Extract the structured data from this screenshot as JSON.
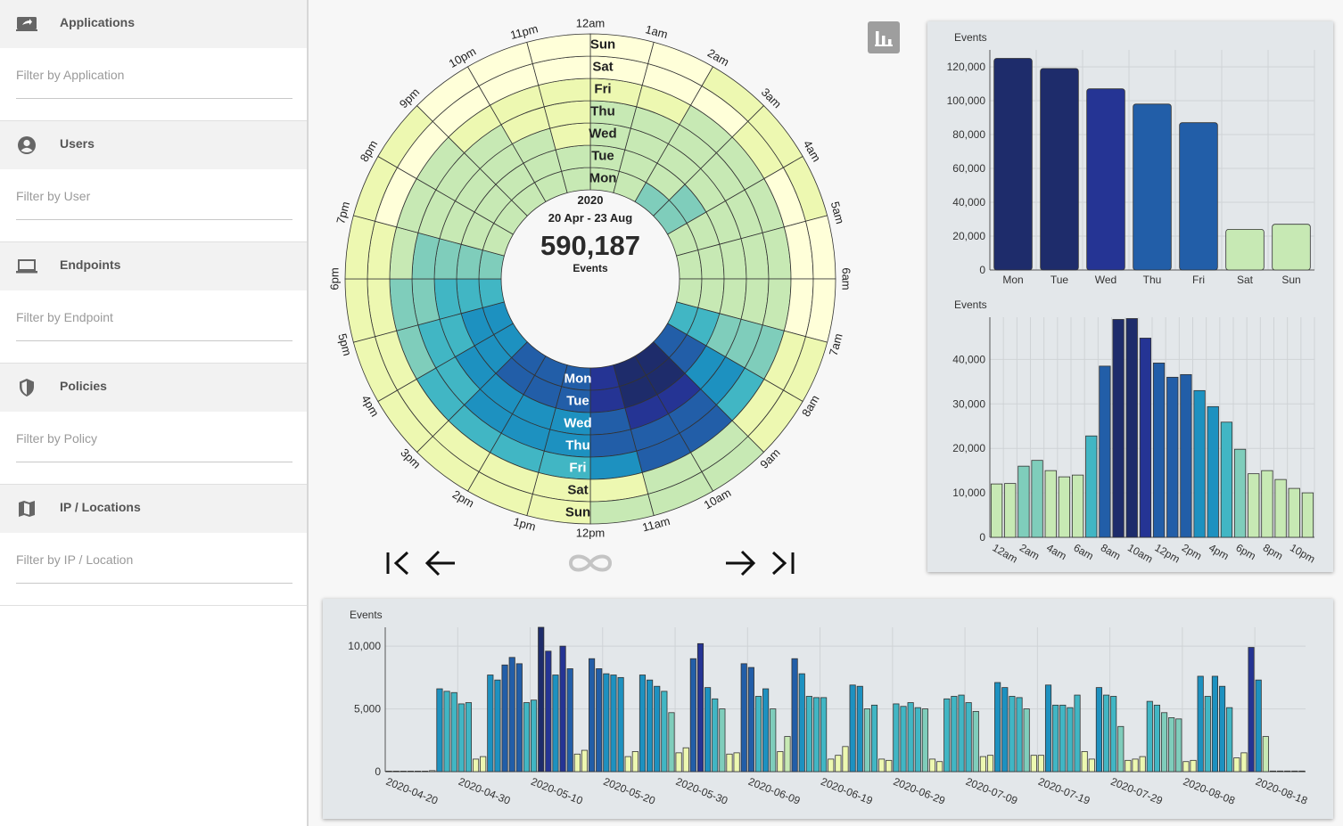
{
  "sidebar": {
    "sections": [
      {
        "title": "Applications",
        "icon": "application-icon",
        "placeholder": "Filter by Application"
      },
      {
        "title": "Users",
        "icon": "user-icon",
        "placeholder": "Filter by User"
      },
      {
        "title": "Endpoints",
        "icon": "laptop-icon",
        "placeholder": "Filter by Endpoint"
      },
      {
        "title": "Policies",
        "icon": "shield-icon",
        "placeholder": "Filter by Policy"
      },
      {
        "title": "IP / Locations",
        "icon": "map-icon",
        "placeholder": "Filter by IP / Location"
      }
    ]
  },
  "radial": {
    "year": "2020",
    "range": "20 Apr - 23 Aug",
    "total": "590,187",
    "total_label": "Events",
    "hour_labels": [
      "12am",
      "1am",
      "2am",
      "3am",
      "4am",
      "5am",
      "6am",
      "7am",
      "8am",
      "9am",
      "10am",
      "11am",
      "12pm",
      "1pm",
      "2pm",
      "3pm",
      "4pm",
      "5pm",
      "6pm",
      "7pm",
      "8pm",
      "9pm",
      "10pm",
      "11pm"
    ],
    "day_labels": [
      "Mon",
      "Tue",
      "Wed",
      "Thu",
      "Fri",
      "Sat",
      "Sun"
    ]
  },
  "colors": {
    "scale": [
      "#ffffd9",
      "#edf8b1",
      "#c7e9b4",
      "#7fcdbb",
      "#41b6c4",
      "#1d91c0",
      "#225ea8",
      "#253494",
      "#1e2c6b"
    ]
  },
  "controls": {
    "first": "skip-first-icon",
    "prev": "arrow-left-icon",
    "loop": "infinity-icon",
    "next": "arrow-right-icon",
    "last": "skip-last-icon",
    "chart_toggle": "bar-chart-icon"
  },
  "chart_data": [
    {
      "type": "bar",
      "ylabel": "Events",
      "categories": [
        "Mon",
        "Tue",
        "Wed",
        "Thu",
        "Fri",
        "Sat",
        "Sun"
      ],
      "values": [
        125000,
        119000,
        107000,
        98000,
        87000,
        24000,
        27000
      ],
      "ylim": [
        0,
        130000
      ],
      "yticks": [
        "0",
        "20,000",
        "40,000",
        "60,000",
        "80,000",
        "100,000",
        "120,000"
      ],
      "ytick_values": [
        0,
        20000,
        40000,
        60000,
        80000,
        100000,
        120000
      ],
      "grid": true
    },
    {
      "type": "bar",
      "ylabel": "Events",
      "categories": [
        "12am",
        "1am",
        "2am",
        "3am",
        "4am",
        "5am",
        "6am",
        "7am",
        "8am",
        "9am",
        "10am",
        "11am",
        "12pm",
        "1pm",
        "2pm",
        "3pm",
        "4pm",
        "5pm",
        "6pm",
        "7pm",
        "8pm",
        "9pm",
        "10pm",
        "11pm"
      ],
      "tick_labels": [
        "12am",
        "2am",
        "4am",
        "6am",
        "8am",
        "10am",
        "12pm",
        "2pm",
        "4pm",
        "6pm",
        "8pm",
        "10pm"
      ],
      "values": [
        12000,
        12100,
        16000,
        17300,
        15000,
        13600,
        14000,
        22800,
        38500,
        49000,
        49200,
        44800,
        39200,
        36000,
        36600,
        33000,
        29400,
        25900,
        19800,
        14300,
        15000,
        13000,
        11000,
        10000
      ],
      "ylim": [
        0,
        49500
      ],
      "yticks": [
        "0",
        "10,000",
        "20,000",
        "30,000",
        "40,000"
      ],
      "ytick_values": [
        0,
        10000,
        20000,
        30000,
        40000
      ],
      "grid": true
    },
    {
      "type": "bar",
      "ylabel": "Events",
      "x_start": "2020-04-20",
      "tick_labels": [
        "2020-04-20",
        "2020-04-30",
        "2020-05-10",
        "2020-05-20",
        "2020-05-30",
        "2020-06-09",
        "2020-06-19",
        "2020-06-29",
        "2020-07-09",
        "2020-07-19",
        "2020-07-29",
        "2020-08-08",
        "2020-08-18"
      ],
      "values": [
        40,
        40,
        40,
        40,
        40,
        40,
        80,
        6600,
        6400,
        6300,
        5400,
        5500,
        1000,
        1200,
        7700,
        7300,
        8500,
        9100,
        8600,
        5500,
        5700,
        11500,
        9600,
        7700,
        10000,
        8200,
        1400,
        1700,
        9000,
        8200,
        7800,
        7700,
        7500,
        1200,
        1600,
        7700,
        7300,
        6800,
        6400,
        4700,
        1500,
        1900,
        9000,
        10200,
        6700,
        5800,
        5000,
        1400,
        1500,
        8600,
        8300,
        6000,
        6600,
        5000,
        1600,
        2800,
        9000,
        7800,
        6000,
        5900,
        5900,
        1000,
        1300,
        2000,
        6900,
        6800,
        5000,
        5300,
        1000,
        900,
        5400,
        5200,
        5500,
        5100,
        5000,
        1000,
        800,
        5800,
        6000,
        6100,
        5500,
        4800,
        1200,
        1300,
        7100,
        6700,
        6000,
        5900,
        5000,
        1300,
        1300,
        6900,
        5300,
        5300,
        5100,
        6100,
        1600,
        1000,
        6700,
        6100,
        6000,
        3600,
        900,
        1000,
        1200,
        5600,
        5300,
        4700,
        4300,
        4200,
        800,
        900,
        7600,
        6000,
        7600,
        6800,
        5100,
        1100,
        1500,
        9900,
        7300,
        2800,
        50,
        50,
        50,
        50,
        50
      ],
      "ylim": [
        0,
        11500
      ],
      "yticks": [
        "0",
        "5,000",
        "10,000"
      ],
      "ytick_values": [
        0,
        5000,
        10000
      ],
      "grid": true
    }
  ]
}
